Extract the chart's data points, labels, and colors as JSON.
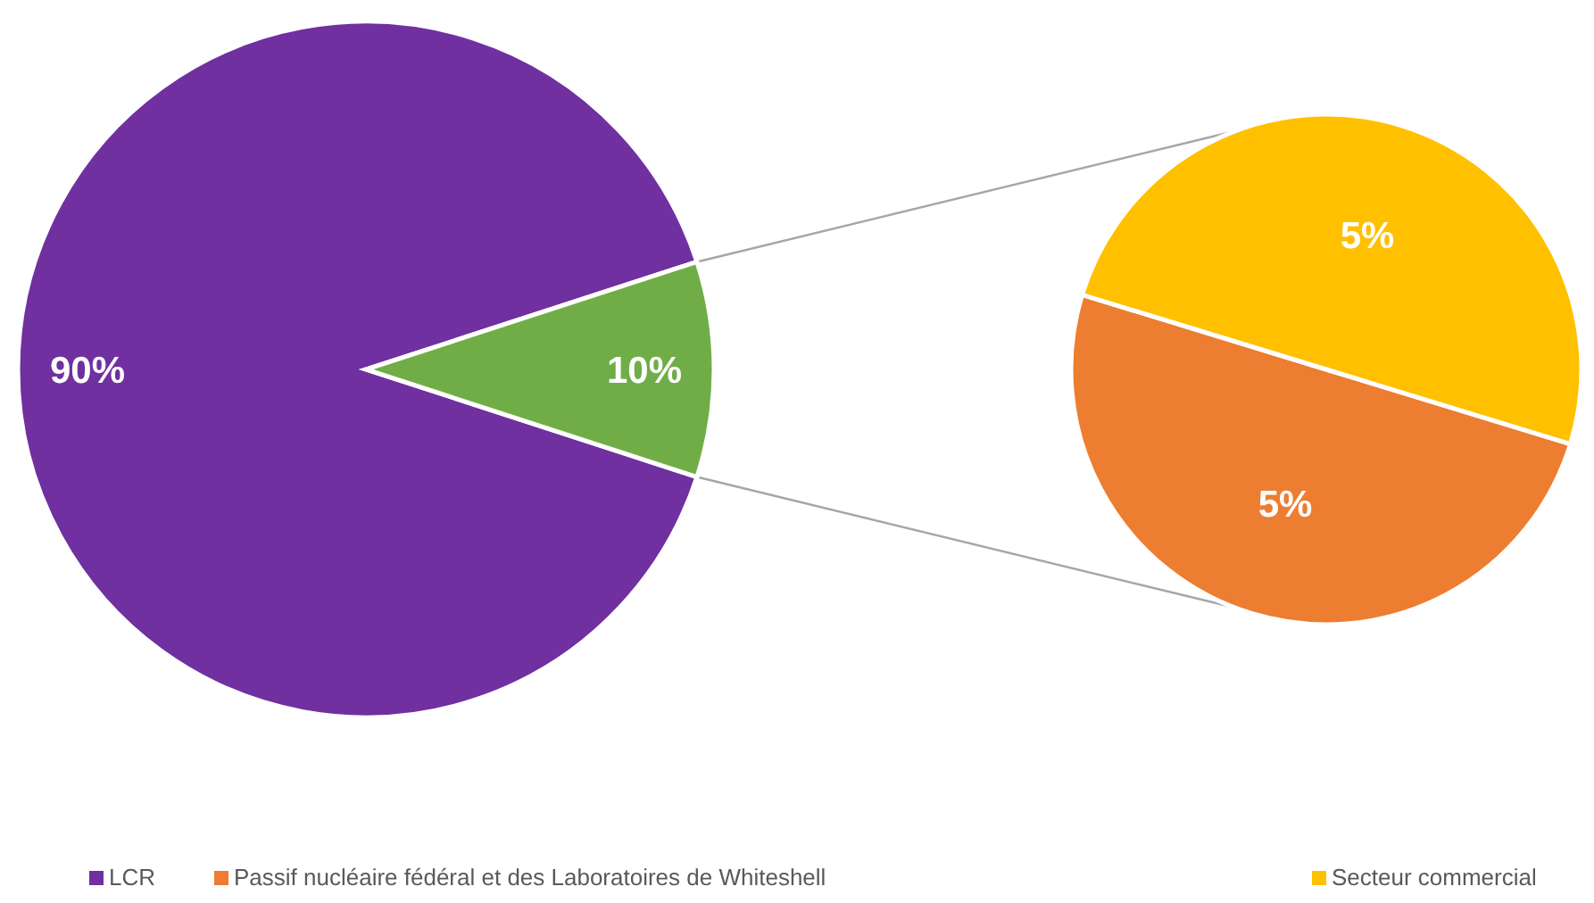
{
  "chart_data": [
    {
      "type": "pie",
      "categories": [
        "LCR",
        null
      ],
      "values": [
        90,
        10
      ],
      "colors": [
        "#7030a0",
        "#70ad47"
      ],
      "value_labels": [
        "90%",
        "10%"
      ],
      "legend": "bottom"
    },
    {
      "type": "pie",
      "categories": [
        "Passif nucléaire fédéral et des Laboratoires de Whiteshell",
        "Secteur commercial"
      ],
      "values": [
        5,
        5
      ],
      "colors": [
        "#ed7d31",
        "#ffc000"
      ],
      "value_labels": [
        "5%",
        "5%"
      ],
      "legend": "bottom"
    }
  ]
}
